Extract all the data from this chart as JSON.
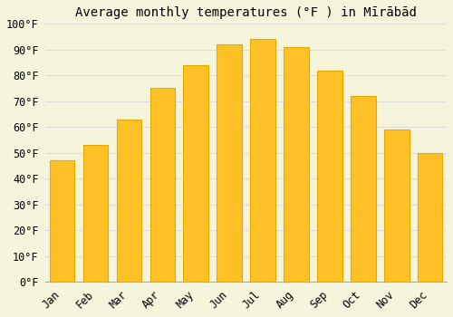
{
  "title": "Average monthly temperatures (°F ) in Mīrābād",
  "months": [
    "Jan",
    "Feb",
    "Mar",
    "Apr",
    "May",
    "Jun",
    "Jul",
    "Aug",
    "Sep",
    "Oct",
    "Nov",
    "Dec"
  ],
  "values": [
    47,
    53,
    63,
    75,
    84,
    92,
    94,
    91,
    82,
    72,
    59,
    50
  ],
  "bar_color": "#FFC125",
  "bar_edge_color": "#E8A800",
  "background_color": "#F5F5DC",
  "grid_color": "#DDDDDD",
  "ylim": [
    0,
    100
  ],
  "yticks": [
    0,
    10,
    20,
    30,
    40,
    50,
    60,
    70,
    80,
    90,
    100
  ],
  "ytick_labels": [
    "0°F",
    "10°F",
    "20°F",
    "30°F",
    "40°F",
    "50°F",
    "60°F",
    "70°F",
    "80°F",
    "90°F",
    "100°F"
  ],
  "title_fontsize": 10,
  "tick_fontsize": 8.5,
  "font_family": "monospace",
  "fig_width": 5.0,
  "fig_height": 3.5,
  "dpi": 100
}
